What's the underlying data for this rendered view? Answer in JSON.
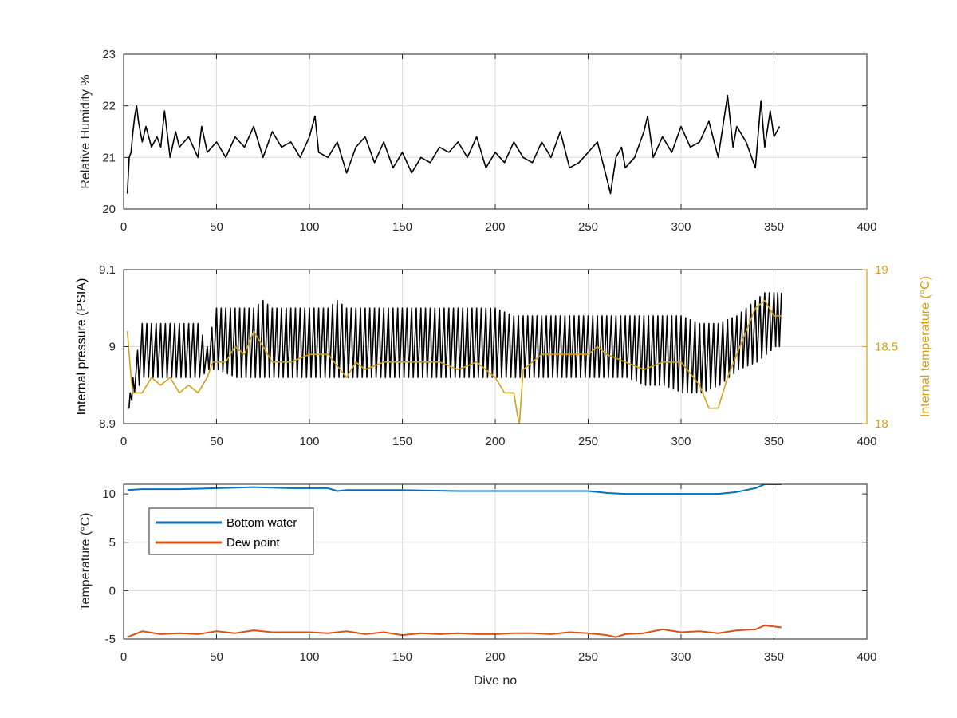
{
  "chart_data": [
    {
      "type": "line",
      "xlabel": "",
      "ylabel": "Relative Humidity %",
      "xlim": [
        0,
        400
      ],
      "ylim": [
        20,
        23
      ],
      "xticks": [
        "0",
        "50",
        "100",
        "150",
        "200",
        "250",
        "300",
        "350",
        "400"
      ],
      "yticks": [
        "20",
        "21",
        "22",
        "23"
      ],
      "grid": true,
      "series": [
        {
          "color": "#000000",
          "x": [
            2,
            3,
            4,
            5,
            6,
            7,
            8,
            10,
            12,
            15,
            18,
            20,
            22,
            25,
            28,
            30,
            35,
            40,
            42,
            45,
            50,
            55,
            60,
            65,
            70,
            75,
            80,
            85,
            90,
            95,
            100,
            103,
            105,
            110,
            115,
            120,
            125,
            130,
            135,
            140,
            145,
            150,
            155,
            160,
            165,
            170,
            175,
            180,
            185,
            190,
            195,
            200,
            205,
            210,
            215,
            220,
            225,
            230,
            235,
            240,
            245,
            250,
            255,
            260,
            262,
            265,
            268,
            270,
            275,
            280,
            282,
            285,
            290,
            295,
            300,
            305,
            310,
            315,
            320,
            325,
            328,
            330,
            335,
            340,
            343,
            345,
            348,
            350,
            353
          ],
          "y": [
            20.3,
            21.0,
            21.1,
            21.5,
            21.8,
            22.0,
            21.7,
            21.3,
            21.6,
            21.2,
            21.4,
            21.2,
            21.9,
            21.0,
            21.5,
            21.2,
            21.4,
            21.0,
            21.6,
            21.1,
            21.3,
            21.0,
            21.4,
            21.2,
            21.6,
            21.0,
            21.5,
            21.2,
            21.3,
            21.0,
            21.4,
            21.8,
            21.1,
            21.0,
            21.3,
            20.7,
            21.2,
            21.4,
            20.9,
            21.3,
            20.8,
            21.1,
            20.7,
            21.0,
            20.9,
            21.2,
            21.1,
            21.3,
            21.0,
            21.4,
            20.8,
            21.1,
            20.9,
            21.3,
            21.0,
            20.9,
            21.3,
            21.0,
            21.5,
            20.8,
            20.9,
            21.1,
            21.3,
            20.6,
            20.3,
            21.0,
            21.2,
            20.8,
            21.0,
            21.5,
            21.8,
            21.0,
            21.4,
            21.1,
            21.6,
            21.2,
            21.3,
            21.7,
            21.0,
            22.2,
            21.2,
            21.6,
            21.3,
            20.8,
            22.1,
            21.2,
            21.9,
            21.4,
            21.6
          ]
        }
      ]
    },
    {
      "type": "line",
      "xlabel": "",
      "ylabel": "Internal pressure (PSIA)",
      "ylabel_right": "Internal temperature (°C)",
      "xlim": [
        0,
        400
      ],
      "ylim": [
        8.9,
        9.1
      ],
      "ylim_right": [
        18,
        19
      ],
      "xticks": [
        "0",
        "50",
        "100",
        "150",
        "200",
        "250",
        "300",
        "350",
        "400"
      ],
      "yticks": [
        "8.9",
        "9",
        "9.1"
      ],
      "yticks_right": [
        "18",
        "18.5",
        "19"
      ],
      "grid": true,
      "series": [
        {
          "axis": "left",
          "color": "#000000",
          "x": [
            2,
            5,
            10,
            20,
            30,
            40,
            45,
            50,
            60,
            70,
            75,
            80,
            90,
            100,
            110,
            115,
            120,
            130,
            140,
            150,
            160,
            170,
            180,
            190,
            200,
            210,
            220,
            230,
            240,
            250,
            260,
            270,
            280,
            290,
            300,
            310,
            320,
            330,
            340,
            345,
            350,
            354
          ],
          "y": [
            8.92,
            8.96,
            9.03,
            9.03,
            9.03,
            9.03,
            9.0,
            9.05,
            9.05,
            9.05,
            9.06,
            9.05,
            9.05,
            9.05,
            9.05,
            9.06,
            9.05,
            9.05,
            9.05,
            9.05,
            9.05,
            9.05,
            9.05,
            9.05,
            9.05,
            9.04,
            9.04,
            9.04,
            9.04,
            9.04,
            9.04,
            9.04,
            9.04,
            9.04,
            9.04,
            9.03,
            9.03,
            9.04,
            9.06,
            9.07,
            9.07,
            9.07
          ],
          "y_low": [
            8.92,
            8.94,
            8.96,
            8.96,
            8.96,
            8.96,
            8.97,
            8.97,
            8.96,
            8.96,
            8.96,
            8.96,
            8.96,
            8.96,
            8.96,
            8.96,
            8.96,
            8.96,
            8.96,
            8.96,
            8.96,
            8.96,
            8.96,
            8.96,
            8.96,
            8.96,
            8.96,
            8.96,
            8.96,
            8.96,
            8.96,
            8.96,
            8.95,
            8.95,
            8.94,
            8.94,
            8.95,
            8.97,
            8.98,
            8.99,
            9.0,
            9.0
          ]
        },
        {
          "axis": "right",
          "color": "#d4a017",
          "x": [
            2,
            3,
            4,
            5,
            10,
            15,
            20,
            25,
            30,
            35,
            40,
            45,
            48,
            55,
            60,
            65,
            70,
            75,
            80,
            90,
            100,
            110,
            120,
            125,
            130,
            140,
            150,
            160,
            170,
            180,
            190,
            200,
            205,
            210,
            212,
            213,
            215,
            220,
            225,
            230,
            240,
            250,
            255,
            260,
            270,
            280,
            290,
            300,
            310,
            315,
            320,
            325,
            330,
            335,
            340,
            345,
            350,
            354
          ],
          "y": [
            18.6,
            18.45,
            18.3,
            18.2,
            18.2,
            18.3,
            18.25,
            18.3,
            18.2,
            18.25,
            18.2,
            18.3,
            18.4,
            18.4,
            18.5,
            18.45,
            18.6,
            18.5,
            18.4,
            18.4,
            18.45,
            18.45,
            18.3,
            18.4,
            18.35,
            18.4,
            18.4,
            18.4,
            18.4,
            18.35,
            18.4,
            18.3,
            18.2,
            18.2,
            18.05,
            18.0,
            18.35,
            18.4,
            18.45,
            18.45,
            18.45,
            18.45,
            18.5,
            18.45,
            18.4,
            18.35,
            18.4,
            18.4,
            18.25,
            18.1,
            18.1,
            18.3,
            18.45,
            18.6,
            18.75,
            18.8,
            18.7,
            18.7
          ]
        }
      ]
    },
    {
      "type": "line",
      "xlabel": "Dive no",
      "ylabel": "Temperature (°C)",
      "xlim": [
        0,
        400
      ],
      "ylim": [
        -5,
        11
      ],
      "xticks": [
        "0",
        "50",
        "100",
        "150",
        "200",
        "250",
        "300",
        "350",
        "400"
      ],
      "yticks": [
        "-5",
        "0",
        "5",
        "10"
      ],
      "grid": true,
      "legend": "top-left",
      "series": [
        {
          "name": "Bottom water",
          "color": "#0072bd",
          "x": [
            2,
            10,
            30,
            50,
            70,
            90,
            110,
            115,
            120,
            150,
            180,
            200,
            220,
            240,
            250,
            260,
            270,
            280,
            300,
            320,
            330,
            340,
            345,
            354
          ],
          "y": [
            10.4,
            10.5,
            10.5,
            10.6,
            10.7,
            10.6,
            10.6,
            10.3,
            10.4,
            10.4,
            10.3,
            10.3,
            10.3,
            10.3,
            10.3,
            10.1,
            10.0,
            10.0,
            10.0,
            10.0,
            10.2,
            10.6,
            11.0,
            11.0
          ]
        },
        {
          "name": "Dew point",
          "color": "#d95319",
          "x": [
            2,
            10,
            20,
            30,
            40,
            50,
            60,
            70,
            80,
            90,
            100,
            110,
            120,
            130,
            140,
            150,
            160,
            170,
            180,
            190,
            200,
            210,
            220,
            230,
            240,
            250,
            260,
            265,
            270,
            280,
            290,
            300,
            310,
            320,
            330,
            340,
            345,
            350,
            354
          ],
          "y": [
            -4.8,
            -4.2,
            -4.5,
            -4.4,
            -4.5,
            -4.2,
            -4.4,
            -4.1,
            -4.3,
            -4.3,
            -4.3,
            -4.4,
            -4.2,
            -4.5,
            -4.3,
            -4.6,
            -4.4,
            -4.5,
            -4.4,
            -4.5,
            -4.5,
            -4.4,
            -4.4,
            -4.5,
            -4.3,
            -4.4,
            -4.6,
            -4.8,
            -4.5,
            -4.4,
            -4.0,
            -4.3,
            -4.2,
            -4.4,
            -4.1,
            -4.0,
            -3.6,
            -3.7,
            -3.8
          ]
        }
      ]
    }
  ]
}
